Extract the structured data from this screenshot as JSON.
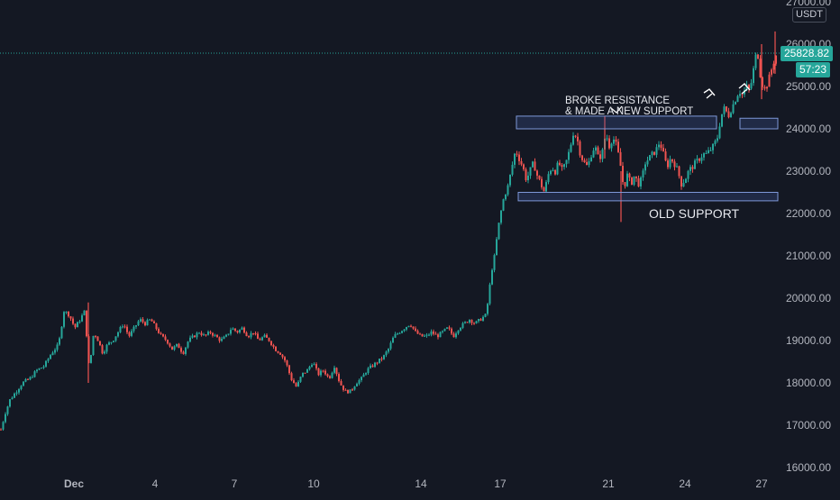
{
  "chart_data": {
    "type": "candlestick",
    "symbol_quote": "USDT",
    "last_price": "25828.82",
    "countdown": "57:23",
    "ylim": [
      16000,
      27000
    ],
    "y_ticks": [
      "16000.00",
      "17000.00",
      "18000.00",
      "19000.00",
      "20000.00",
      "21000.00",
      "22000.00",
      "23000.00",
      "24000.00",
      "25000.00",
      "26000.00",
      "27000.00"
    ],
    "x_ticks": [
      "Dec",
      "4",
      "7",
      "10",
      "14",
      "17",
      "21",
      "24",
      "27"
    ],
    "annotations": {
      "broke_line1": "BROKE RESISTANCE",
      "broke_line2": "& MADE A NEW SUPPORT",
      "old_support": "OLD SUPPORT"
    },
    "zones": [
      {
        "label": "resistance-turned-support",
        "y_low": 24000,
        "y_high": 24300
      },
      {
        "label": "old-support",
        "y_low": 22300,
        "y_high": 22500
      },
      {
        "label": "recent-zone",
        "y_low": 24000,
        "y_high": 24250
      }
    ],
    "path": [
      [
        0,
        16900
      ],
      [
        5,
        17300
      ],
      [
        10,
        17600
      ],
      [
        17,
        17800
      ],
      [
        24,
        18000
      ],
      [
        32,
        18100
      ],
      [
        40,
        18300
      ],
      [
        48,
        18400
      ],
      [
        56,
        18700
      ],
      [
        64,
        18900
      ],
      [
        70,
        19700
      ],
      [
        76,
        19600
      ],
      [
        82,
        19300
      ],
      [
        88,
        19500
      ],
      [
        93,
        19700
      ],
      [
        98,
        18300
      ],
      [
        103,
        19200
      ],
      [
        108,
        19000
      ],
      [
        113,
        18700
      ],
      [
        118,
        18900
      ],
      [
        124,
        19000
      ],
      [
        130,
        19200
      ],
      [
        136,
        19400
      ],
      [
        142,
        19100
      ],
      [
        148,
        19300
      ],
      [
        154,
        19500
      ],
      [
        160,
        19400
      ],
      [
        166,
        19500
      ],
      [
        172,
        19300
      ],
      [
        178,
        19100
      ],
      [
        184,
        19000
      ],
      [
        190,
        18800
      ],
      [
        196,
        18900
      ],
      [
        202,
        18700
      ],
      [
        208,
        19000
      ],
      [
        214,
        19100
      ],
      [
        220,
        19200
      ],
      [
        226,
        19100
      ],
      [
        232,
        19200
      ],
      [
        238,
        19100
      ],
      [
        244,
        19000
      ],
      [
        250,
        19100
      ],
      [
        256,
        19300
      ],
      [
        262,
        19200
      ],
      [
        268,
        19300
      ],
      [
        274,
        19100
      ],
      [
        280,
        19200
      ],
      [
        286,
        19000
      ],
      [
        292,
        19100
      ],
      [
        298,
        19000
      ],
      [
        304,
        18800
      ],
      [
        310,
        18700
      ],
      [
        316,
        18500
      ],
      [
        322,
        18100
      ],
      [
        328,
        17900
      ],
      [
        334,
        18200
      ],
      [
        340,
        18300
      ],
      [
        346,
        18500
      ],
      [
        352,
        18200
      ],
      [
        358,
        18300
      ],
      [
        364,
        18100
      ],
      [
        370,
        18400
      ],
      [
        376,
        18000
      ],
      [
        382,
        17800
      ],
      [
        388,
        17800
      ],
      [
        394,
        18000
      ],
      [
        400,
        18100
      ],
      [
        406,
        18300
      ],
      [
        412,
        18400
      ],
      [
        418,
        18500
      ],
      [
        424,
        18600
      ],
      [
        430,
        18800
      ],
      [
        436,
        19100
      ],
      [
        442,
        19200
      ],
      [
        448,
        19300
      ],
      [
        454,
        19400
      ],
      [
        460,
        19200
      ],
      [
        466,
        19100
      ],
      [
        472,
        19100
      ],
      [
        478,
        19200
      ],
      [
        484,
        19100
      ],
      [
        490,
        19200
      ],
      [
        496,
        19300
      ],
      [
        502,
        19100
      ],
      [
        508,
        19300
      ],
      [
        514,
        19400
      ],
      [
        520,
        19500
      ],
      [
        526,
        19400
      ],
      [
        532,
        19500
      ],
      [
        538,
        19600
      ],
      [
        541,
        20000
      ],
      [
        544,
        20600
      ],
      [
        547,
        20900
      ],
      [
        552,
        21700
      ],
      [
        557,
        22300
      ],
      [
        562,
        22600
      ],
      [
        567,
        23100
      ],
      [
        571,
        23500
      ],
      [
        575,
        23300
      ],
      [
        579,
        23100
      ],
      [
        583,
        22800
      ],
      [
        587,
        23000
      ],
      [
        591,
        23200
      ],
      [
        595,
        22900
      ],
      [
        599,
        22700
      ],
      [
        603,
        22500
      ],
      [
        607,
        22900
      ],
      [
        611,
        23100
      ],
      [
        615,
        23000
      ],
      [
        619,
        23200
      ],
      [
        623,
        23000
      ],
      [
        627,
        23200
      ],
      [
        631,
        23500
      ],
      [
        635,
        23900
      ],
      [
        639,
        23800
      ],
      [
        643,
        23400
      ],
      [
        647,
        23200
      ],
      [
        651,
        23100
      ],
      [
        655,
        23400
      ],
      [
        659,
        23600
      ],
      [
        663,
        23300
      ],
      [
        667,
        23400
      ],
      [
        671,
        23900
      ],
      [
        675,
        23600
      ],
      [
        679,
        23800
      ],
      [
        683,
        23600
      ],
      [
        687,
        23200
      ],
      [
        691,
        22600
      ],
      [
        695,
        22900
      ],
      [
        699,
        22700
      ],
      [
        703,
        22900
      ],
      [
        707,
        22700
      ],
      [
        711,
        22800
      ],
      [
        715,
        23200
      ],
      [
        719,
        23300
      ],
      [
        723,
        23400
      ],
      [
        727,
        23500
      ],
      [
        731,
        23700
      ],
      [
        735,
        23400
      ],
      [
        739,
        23100
      ],
      [
        743,
        23300
      ],
      [
        747,
        23200
      ],
      [
        751,
        23000
      ],
      [
        755,
        22700
      ],
      [
        759,
        22800
      ],
      [
        763,
        23000
      ],
      [
        767,
        23100
      ],
      [
        771,
        23200
      ],
      [
        775,
        23300
      ],
      [
        779,
        23400
      ],
      [
        783,
        23400
      ],
      [
        787,
        23500
      ],
      [
        791,
        23600
      ],
      [
        795,
        23800
      ],
      [
        799,
        24300
      ],
      [
        803,
        24500
      ],
      [
        807,
        24300
      ],
      [
        811,
        24500
      ],
      [
        815,
        24700
      ],
      [
        819,
        24900
      ],
      [
        823,
        24800
      ],
      [
        827,
        25000
      ],
      [
        831,
        24900
      ],
      [
        835,
        25400
      ],
      [
        839,
        25900
      ],
      [
        843,
        25200
      ],
      [
        847,
        24900
      ],
      [
        851,
        25100
      ],
      [
        855,
        25400
      ],
      [
        859,
        25700
      ],
      [
        863,
        25828
      ]
    ]
  }
}
